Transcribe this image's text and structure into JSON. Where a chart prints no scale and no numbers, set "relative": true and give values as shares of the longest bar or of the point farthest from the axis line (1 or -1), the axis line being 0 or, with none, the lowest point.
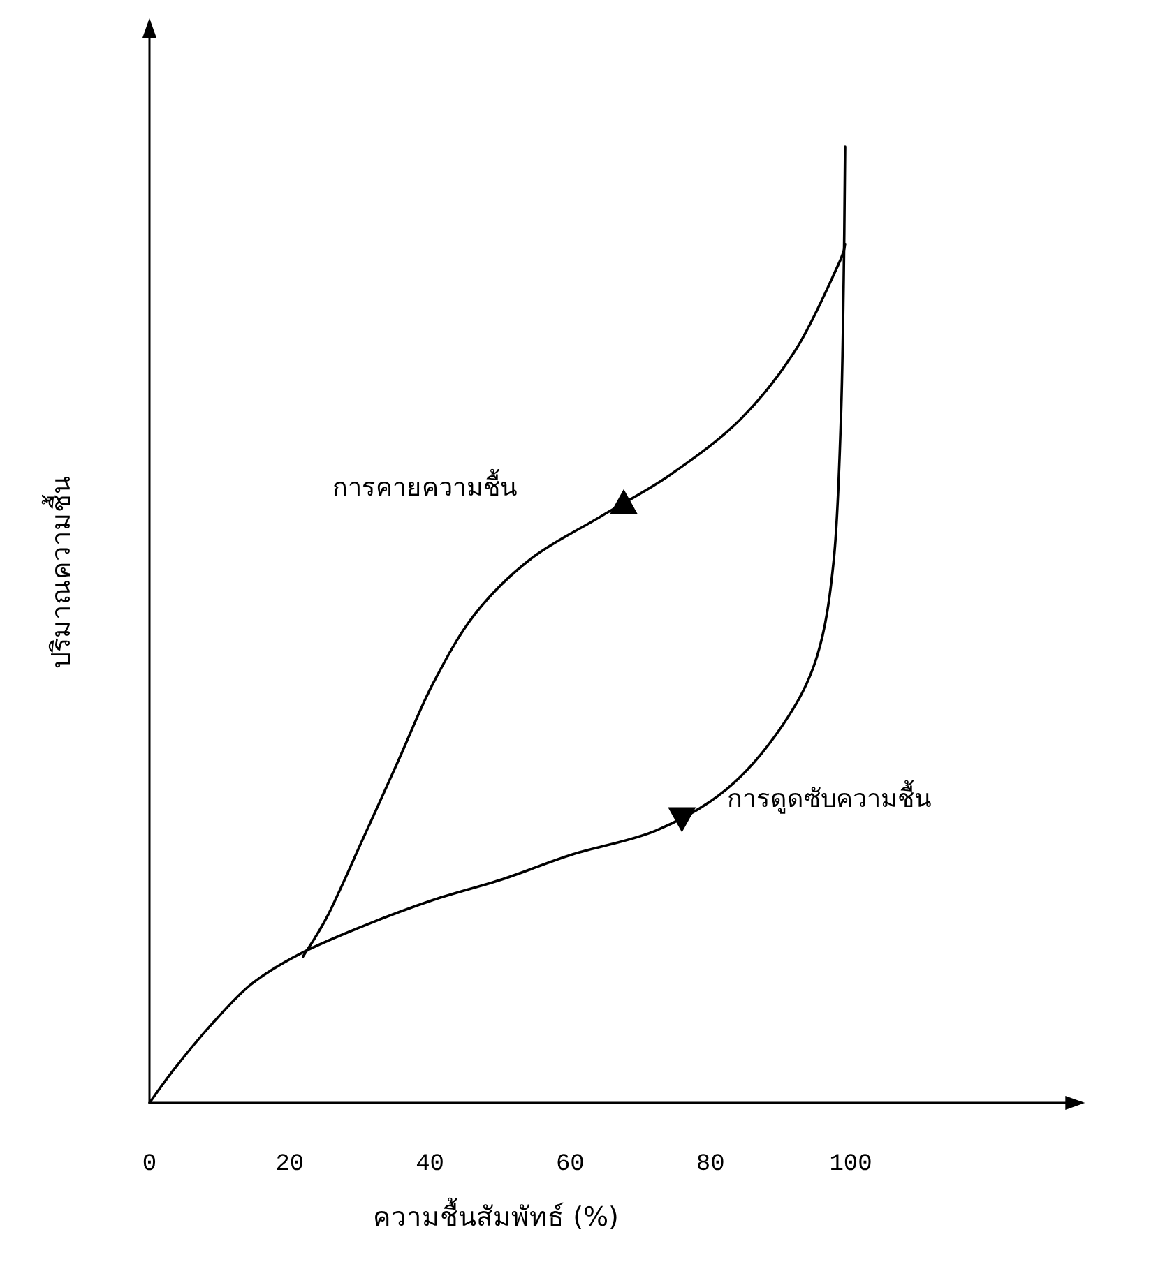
{
  "chart_data": {
    "type": "line",
    "xlabel": "ความชื้นสัมพัทธ์ (%)",
    "ylabel": "ปริมาณความชื้น",
    "relative": true,
    "xlim": [
      0,
      133
    ],
    "xticks": [
      0,
      20,
      40,
      60,
      80,
      100
    ],
    "grid": false,
    "legend": false,
    "marker": "none",
    "line_style": "solid",
    "series": [
      {
        "name": "การคายความชื้น",
        "color": "#000000",
        "x": [
          21.9,
          25.5,
          30.5,
          35.5,
          40.4,
          46.4,
          54.4,
          64.3,
          74.3,
          84.3,
          92.2,
          98.2,
          99.2
        ],
        "values": [
          0.153,
          0.197,
          0.277,
          0.358,
          0.438,
          0.511,
          0.569,
          0.613,
          0.657,
          0.715,
          0.788,
          0.876,
          0.898
        ]
      },
      {
        "name": "การดูดซับความชื้น",
        "color": "#000000",
        "x": [
          0,
          3.6,
          8.6,
          14.5,
          21.5,
          30.5,
          40.4,
          50.4,
          60.4,
          72.3,
          82.3,
          90.2,
          95.2,
          97.6,
          98.6,
          99.0,
          99.2
        ],
        "values": [
          0,
          0.036,
          0.08,
          0.124,
          0.156,
          0.185,
          0.212,
          0.234,
          0.26,
          0.285,
          0.328,
          0.394,
          0.467,
          0.569,
          0.715,
          0.861,
          1.0
        ]
      }
    ]
  }
}
